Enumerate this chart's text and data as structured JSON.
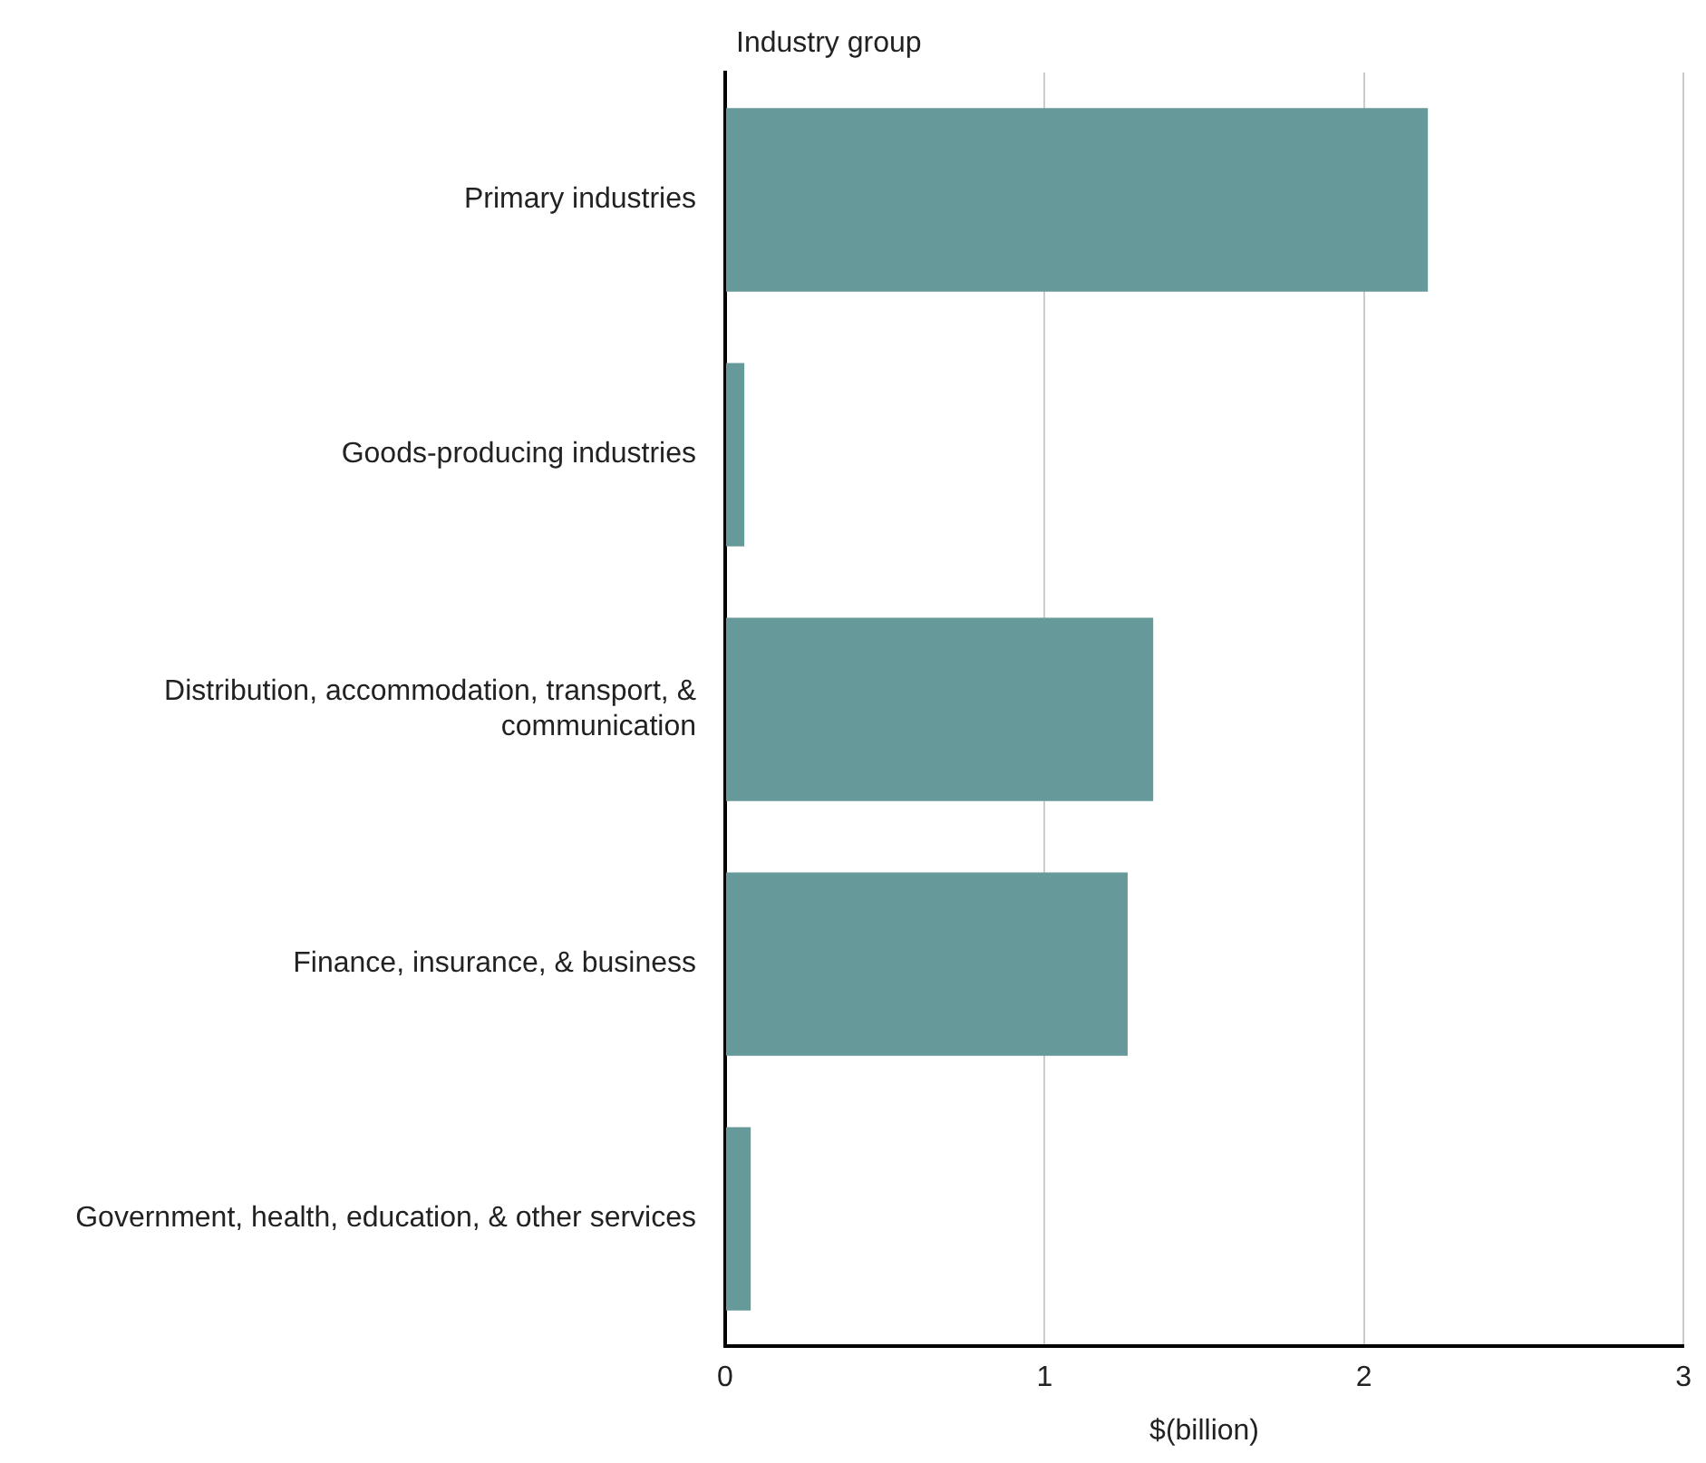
{
  "chart_data": {
    "type": "bar",
    "orientation": "horizontal",
    "ylabel": "Industry group",
    "xlabel": "$(billion)",
    "categories": [
      "Primary industries",
      "Goods-producing industries",
      "Distribution, accommodation, transport, & communication",
      "Finance, insurance, & business",
      "Government, health, education, & other services"
    ],
    "values": [
      2.2,
      0.06,
      1.34,
      1.26,
      0.08
    ],
    "color": "#669999",
    "xlim": [
      0,
      3
    ],
    "xticks": [
      0,
      1,
      2,
      3
    ],
    "grid": "x",
    "legend": false
  }
}
